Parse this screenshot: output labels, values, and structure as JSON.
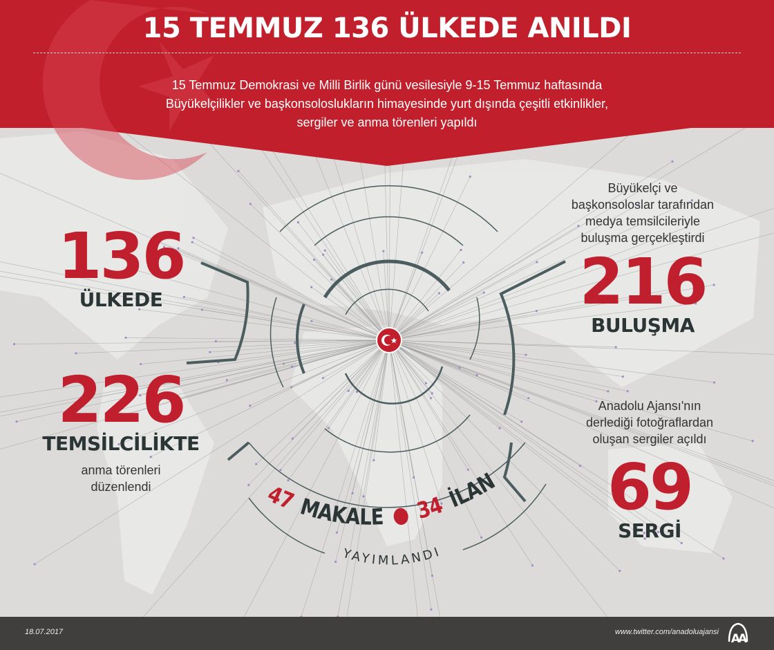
{
  "header": {
    "title": "15 TEMMUZ 136 ÜLKEDE ANILDI",
    "subtitle_lines": [
      "15 Temmuz Demokrasi ve Milli Birlik günü vesilesiyle 9-15 Temmuz haftasında",
      "Büyükelçilikler ve başkonsoloslukların himayesinde yurt dışında çeşitli etkinlikler,",
      "sergiler ve anma törenleri yapıldı"
    ]
  },
  "stats": {
    "countries": {
      "value": "136",
      "label": "ÜLKEDE"
    },
    "missions": {
      "value": "226",
      "label": "TEMSİLCİLİKTE",
      "desc_lines": [
        "anma törenleri",
        "düzenlendi"
      ]
    },
    "meetings": {
      "value": "216",
      "label": "BULUŞMA",
      "desc_lines": [
        "Büyükelçi ve",
        "başkonsoloslar tarafından",
        "medya temsilcileriyle",
        "buluşma gerçekleştirdi"
      ]
    },
    "exhibitions": {
      "value": "69",
      "label": "SERGİ",
      "desc_lines": [
        "Anadolu Ajansı'nın",
        "derlediği fotoğraflardan",
        "oluşan sergiler açıldı"
      ]
    },
    "publications": {
      "articles_value": "47",
      "articles_label": "MAKALE",
      "ads_value": "34",
      "ads_label": "İLAN",
      "caption": "YAYIMLANDI"
    }
  },
  "footer": {
    "date": "18.07.2017",
    "url": "www.twitter.com/anadoluajansi",
    "logo_text": "AA"
  },
  "colors": {
    "red": "#c0202e",
    "dark": "#2b3535",
    "arc": "#4b5d5f",
    "footer": "#403f3e"
  }
}
